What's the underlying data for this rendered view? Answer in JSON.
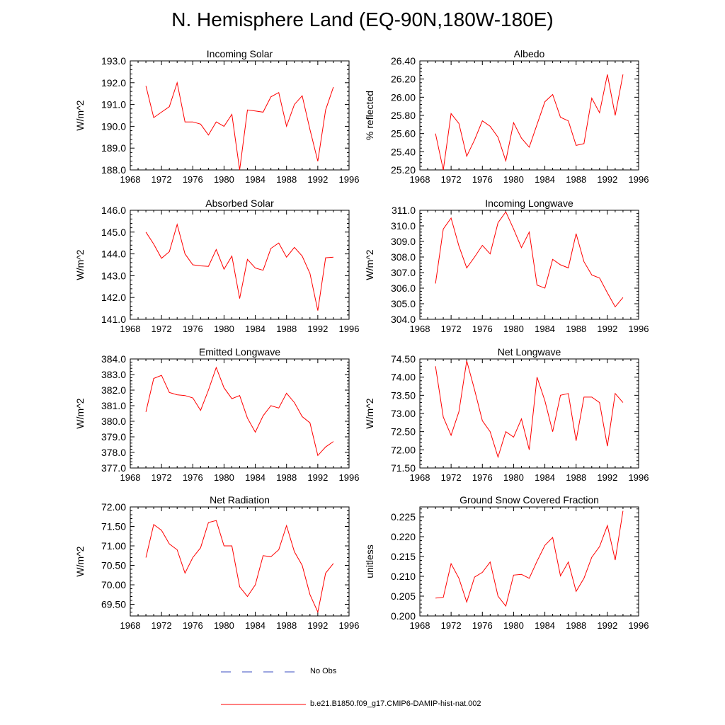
{
  "title": "N. Hemisphere Land (EQ-90N,180W-180E)",
  "colors": {
    "series": "#ff0000",
    "no_obs": "#3a4cc0",
    "axis": "#000000"
  },
  "legend": {
    "obs_label": "No Obs",
    "model_label": "b.e21.B1850.f09_g17.CMIP6-DAMIP-hist-nat.002"
  },
  "chart_data": [
    {
      "type": "line",
      "title": "Incoming Solar",
      "ylabel": "W/m^2",
      "xlim": [
        1968,
        1996
      ],
      "ylim": [
        188.0,
        193.0
      ],
      "xticks": [
        1968,
        1972,
        1976,
        1980,
        1984,
        1988,
        1992,
        1996
      ],
      "yticks": [
        "188.0",
        "189.0",
        "190.0",
        "191.0",
        "192.0",
        "193.0"
      ],
      "x": [
        1970,
        1971,
        1972,
        1973,
        1974,
        1975,
        1976,
        1977,
        1978,
        1979,
        1980,
        1981,
        1982,
        1983,
        1984,
        1985,
        1986,
        1987,
        1988,
        1989,
        1990,
        1991,
        1992,
        1993,
        1994
      ],
      "y": [
        191.85,
        190.4,
        190.65,
        190.9,
        192.0,
        190.2,
        190.2,
        190.1,
        189.6,
        190.2,
        190.0,
        190.55,
        188.0,
        190.75,
        190.7,
        190.65,
        191.35,
        191.55,
        190.0,
        191.0,
        191.4,
        189.85,
        188.4,
        190.75,
        191.8
      ]
    },
    {
      "type": "line",
      "title": "Albedo",
      "ylabel": "% reflected",
      "xlim": [
        1968,
        1996
      ],
      "ylim": [
        25.2,
        26.4
      ],
      "xticks": [
        1968,
        1972,
        1976,
        1980,
        1984,
        1988,
        1992,
        1996
      ],
      "yticks": [
        "25.20",
        "25.40",
        "25.60",
        "25.80",
        "26.00",
        "26.20",
        "26.40"
      ],
      "x": [
        1970,
        1971,
        1972,
        1973,
        1974,
        1975,
        1976,
        1977,
        1978,
        1979,
        1980,
        1981,
        1982,
        1983,
        1984,
        1985,
        1986,
        1987,
        1988,
        1989,
        1990,
        1991,
        1992,
        1993,
        1994
      ],
      "y": [
        25.6,
        25.2,
        25.82,
        25.71,
        25.35,
        25.53,
        25.74,
        25.68,
        25.56,
        25.3,
        25.72,
        25.55,
        25.45,
        25.7,
        25.95,
        26.03,
        25.78,
        25.74,
        25.47,
        25.49,
        25.99,
        25.83,
        26.25,
        25.8,
        26.25
      ]
    },
    {
      "type": "line",
      "title": "Absorbed Solar",
      "ylabel": "W/m^2",
      "xlim": [
        1968,
        1996
      ],
      "ylim": [
        141.0,
        146.0
      ],
      "xticks": [
        1968,
        1972,
        1976,
        1980,
        1984,
        1988,
        1992,
        1996
      ],
      "yticks": [
        "141.0",
        "142.0",
        "143.0",
        "144.0",
        "145.0",
        "146.0"
      ],
      "x": [
        1970,
        1971,
        1972,
        1973,
        1974,
        1975,
        1976,
        1977,
        1978,
        1979,
        1980,
        1981,
        1982,
        1983,
        1984,
        1985,
        1986,
        1987,
        1988,
        1989,
        1990,
        1991,
        1992,
        1993,
        1994
      ],
      "y": [
        145.0,
        144.45,
        143.8,
        144.1,
        145.35,
        144.0,
        143.5,
        143.45,
        143.43,
        144.2,
        143.3,
        143.9,
        141.95,
        143.75,
        143.35,
        143.25,
        144.25,
        144.5,
        143.85,
        144.3,
        143.9,
        143.1,
        141.4,
        143.82,
        143.85
      ]
    },
    {
      "type": "line",
      "title": "Incoming Longwave",
      "ylabel": "W/m^2",
      "xlim": [
        1968,
        1996
      ],
      "ylim": [
        304.0,
        311.0
      ],
      "xticks": [
        1968,
        1972,
        1976,
        1980,
        1984,
        1988,
        1992,
        1996
      ],
      "yticks": [
        "304.0",
        "305.0",
        "306.0",
        "307.0",
        "308.0",
        "309.0",
        "310.0",
        "311.0"
      ],
      "x": [
        1970,
        1971,
        1972,
        1973,
        1974,
        1975,
        1976,
        1977,
        1978,
        1979,
        1980,
        1981,
        1982,
        1983,
        1984,
        1985,
        1986,
        1987,
        1988,
        1989,
        1990,
        1991,
        1992,
        1993,
        1994
      ],
      "y": [
        306.3,
        309.8,
        310.5,
        308.7,
        307.3,
        308.0,
        308.75,
        308.2,
        310.2,
        310.9,
        309.8,
        308.6,
        309.6,
        306.2,
        306.0,
        307.85,
        307.5,
        307.3,
        309.5,
        307.7,
        306.85,
        306.65,
        305.7,
        304.8,
        305.4
      ]
    },
    {
      "type": "line",
      "title": "Emitted Longwave",
      "ylabel": "W/m^2",
      "xlim": [
        1968,
        1996
      ],
      "ylim": [
        377.0,
        384.0
      ],
      "xticks": [
        1968,
        1972,
        1976,
        1980,
        1984,
        1988,
        1992,
        1996
      ],
      "yticks": [
        "377.0",
        "378.0",
        "379.0",
        "380.0",
        "381.0",
        "382.0",
        "383.0",
        "384.0"
      ],
      "x": [
        1970,
        1971,
        1972,
        1973,
        1974,
        1975,
        1976,
        1977,
        1978,
        1979,
        1980,
        1981,
        1982,
        1983,
        1984,
        1985,
        1986,
        1987,
        1988,
        1989,
        1990,
        1991,
        1992,
        1993,
        1994
      ],
      "y": [
        380.6,
        382.75,
        382.95,
        381.85,
        381.7,
        381.65,
        381.5,
        380.7,
        382.0,
        383.45,
        382.15,
        381.45,
        381.65,
        380.2,
        379.3,
        380.35,
        381.0,
        380.85,
        381.8,
        381.2,
        380.3,
        379.9,
        377.8,
        378.35,
        378.7
      ]
    },
    {
      "type": "line",
      "title": "Net Longwave",
      "ylabel": "W/m^2",
      "xlim": [
        1968,
        1996
      ],
      "ylim": [
        71.5,
        74.5
      ],
      "xticks": [
        1968,
        1972,
        1976,
        1980,
        1984,
        1988,
        1992,
        1996
      ],
      "yticks": [
        "71.50",
        "72.00",
        "72.50",
        "73.00",
        "73.50",
        "74.00",
        "74.50"
      ],
      "x": [
        1970,
        1971,
        1972,
        1973,
        1974,
        1975,
        1976,
        1977,
        1978,
        1979,
        1980,
        1981,
        1982,
        1983,
        1984,
        1985,
        1986,
        1987,
        1988,
        1989,
        1990,
        1991,
        1992,
        1993,
        1994
      ],
      "y": [
        74.3,
        72.9,
        72.4,
        73.05,
        74.45,
        73.65,
        72.8,
        72.5,
        71.8,
        72.5,
        72.35,
        72.85,
        72.0,
        74.0,
        73.35,
        72.5,
        73.5,
        73.55,
        72.25,
        73.45,
        73.45,
        73.3,
        72.1,
        73.55,
        73.3
      ]
    },
    {
      "type": "line",
      "title": "Net Radiation",
      "ylabel": "W/m^2",
      "xlim": [
        1968,
        1996
      ],
      "ylim": [
        69.2,
        72.0
      ],
      "xticks": [
        1968,
        1972,
        1976,
        1980,
        1984,
        1988,
        1992,
        1996
      ],
      "yticks": [
        "69.50",
        "70.00",
        "70.50",
        "71.00",
        "71.50",
        "72.00"
      ],
      "ytick_values": [
        69.5,
        70.0,
        70.5,
        71.0,
        71.5,
        72.0
      ],
      "x": [
        1970,
        1971,
        1972,
        1973,
        1974,
        1975,
        1976,
        1977,
        1978,
        1979,
        1980,
        1981,
        1982,
        1983,
        1984,
        1985,
        1986,
        1987,
        1988,
        1989,
        1990,
        1991,
        1992,
        1993,
        1994
      ],
      "y": [
        70.7,
        71.55,
        71.4,
        71.05,
        70.9,
        70.3,
        70.7,
        70.95,
        71.6,
        71.65,
        71.0,
        71.0,
        69.95,
        69.7,
        70.0,
        70.75,
        70.72,
        70.9,
        71.52,
        70.85,
        70.5,
        69.75,
        69.3,
        70.3,
        70.55
      ]
    },
    {
      "type": "line",
      "title": "Ground Snow Covered Fraction",
      "ylabel": "unitless",
      "xlim": [
        1968,
        1996
      ],
      "ylim": [
        0.2,
        0.2275
      ],
      "xticks": [
        1968,
        1972,
        1976,
        1980,
        1984,
        1988,
        1992,
        1996
      ],
      "yticks": [
        "0.200",
        "0.205",
        "0.210",
        "0.215",
        "0.220",
        "0.225"
      ],
      "ytick_values": [
        0.2,
        0.205,
        0.21,
        0.215,
        0.22,
        0.225
      ],
      "x": [
        1970,
        1971,
        1972,
        1973,
        1974,
        1975,
        1976,
        1977,
        1978,
        1979,
        1980,
        1981,
        1982,
        1983,
        1984,
        1985,
        1986,
        1987,
        1988,
        1989,
        1990,
        1991,
        1992,
        1993,
        1994
      ],
      "y": [
        0.2045,
        0.2047,
        0.2132,
        0.2095,
        0.2035,
        0.2098,
        0.211,
        0.2136,
        0.205,
        0.2025,
        0.2103,
        0.2105,
        0.2095,
        0.2138,
        0.2178,
        0.2198,
        0.2101,
        0.2136,
        0.2062,
        0.2095,
        0.2148,
        0.2175,
        0.2228,
        0.2141,
        0.2265
      ]
    }
  ]
}
